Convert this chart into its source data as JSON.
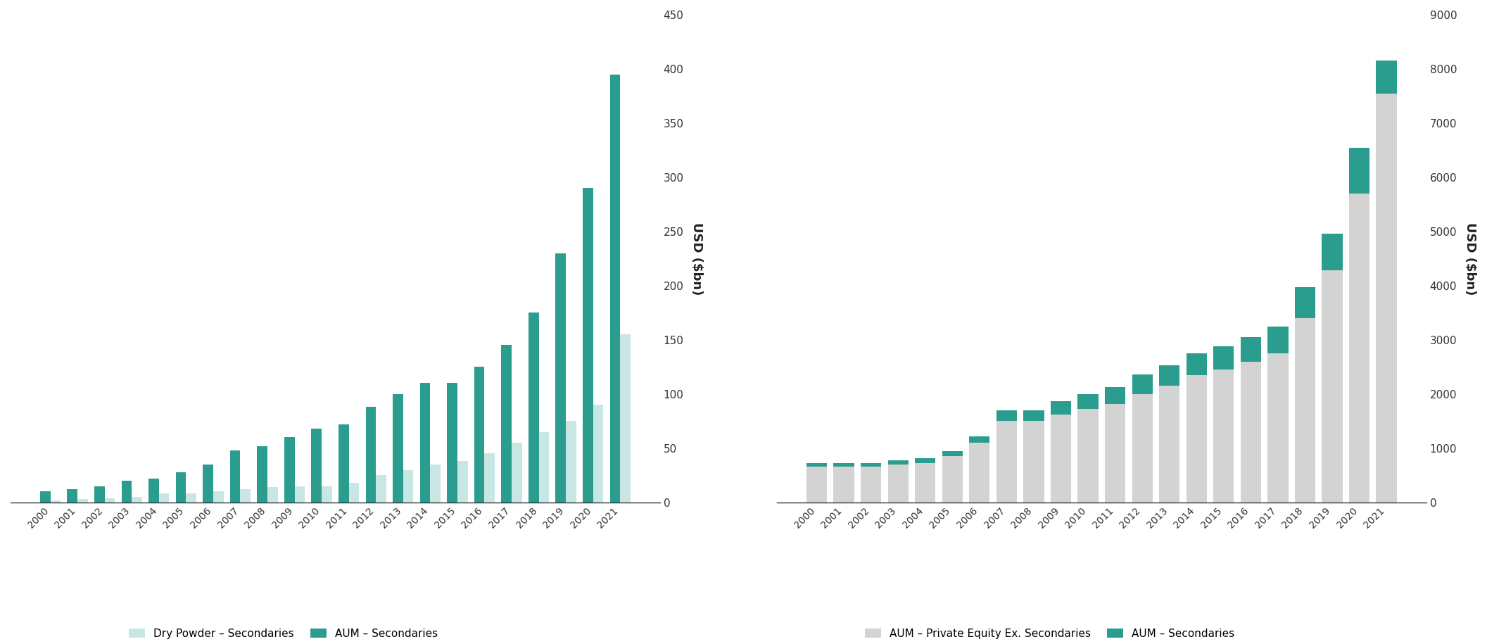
{
  "years": [
    "2000",
    "2001",
    "2002",
    "2003",
    "2004",
    "2005",
    "2006",
    "2007",
    "2008",
    "2009",
    "2010",
    "2011",
    "2012",
    "2013",
    "2014",
    "2015",
    "2016",
    "2017",
    "2018",
    "2019",
    "2020",
    "2021"
  ],
  "chart1": {
    "dry_powder": [
      2,
      3,
      4,
      5,
      8,
      8,
      10,
      12,
      14,
      15,
      15,
      18,
      25,
      30,
      35,
      38,
      45,
      55,
      65,
      75,
      90,
      155
    ],
    "aum_secondaries": [
      10,
      12,
      15,
      20,
      22,
      28,
      35,
      48,
      52,
      60,
      68,
      72,
      88,
      100,
      110,
      110,
      125,
      145,
      175,
      230,
      290,
      395
    ],
    "ylabel": "USD ($bn)",
    "ylim": [
      0,
      450
    ],
    "yticks": [
      0,
      50,
      100,
      150,
      200,
      250,
      300,
      350,
      400,
      450
    ],
    "legend": [
      "Dry Powder – Secondaries",
      "AUM – Secondaries"
    ],
    "color_dry_powder": "#c8e6e4",
    "color_aum": "#2a9d8f"
  },
  "chart2": {
    "aum_pe_ex": [
      660,
      660,
      660,
      700,
      730,
      850,
      1100,
      1500,
      1500,
      1620,
      1720,
      1820,
      2000,
      2150,
      2350,
      2450,
      2600,
      2750,
      3400,
      4280,
      5700,
      7550
    ],
    "aum_secondaries": [
      70,
      70,
      70,
      80,
      90,
      100,
      120,
      200,
      200,
      250,
      280,
      310,
      360,
      380,
      400,
      430,
      450,
      500,
      570,
      680,
      850,
      600
    ],
    "ylabel": "USD ($bn)",
    "ylim": [
      0,
      9000
    ],
    "yticks": [
      0,
      1000,
      2000,
      3000,
      4000,
      5000,
      6000,
      7000,
      8000,
      9000
    ],
    "legend": [
      "AUM – Private Equity Ex. Secondaries",
      "AUM – Secondaries"
    ],
    "color_pe_ex": "#d3d3d3",
    "color_aum": "#2a9d8f"
  },
  "background_color": "#ffffff",
  "bar_width": 0.38,
  "tick_fontsize": 10,
  "label_fontsize": 11,
  "legend_fontsize": 11
}
